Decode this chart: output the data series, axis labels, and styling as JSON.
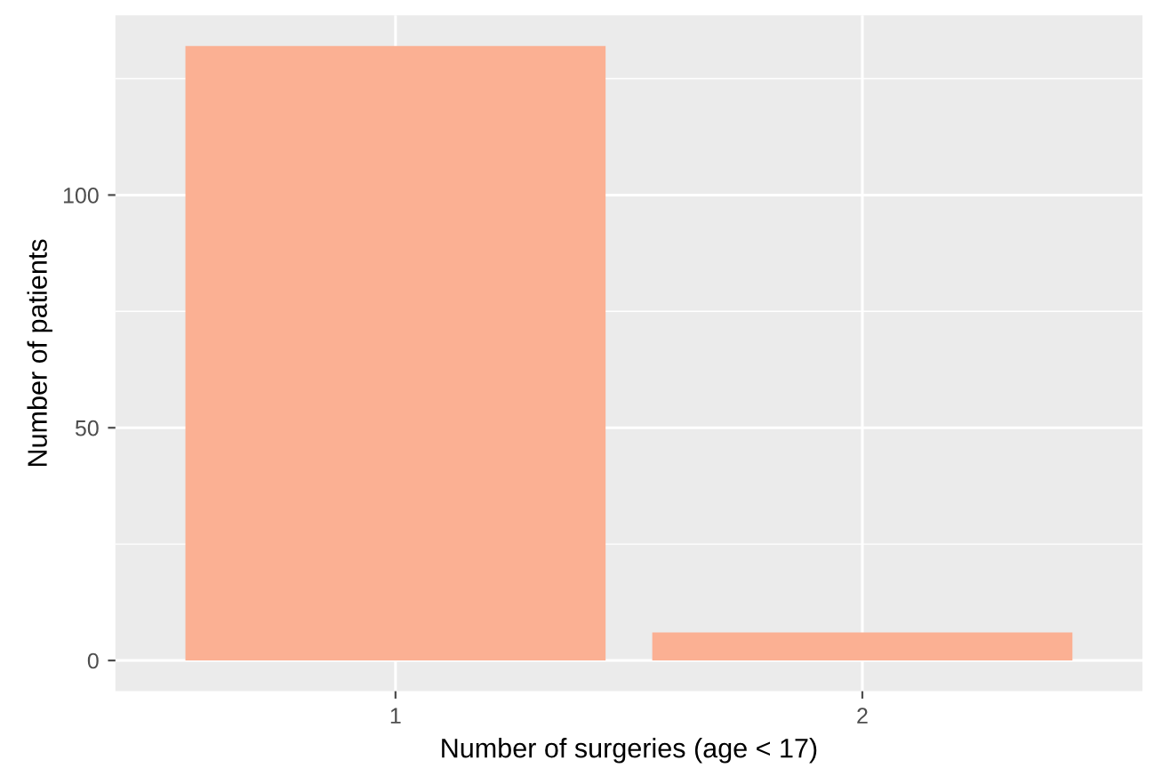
{
  "chart_data": {
    "type": "bar",
    "xlabel": "Number of surgeries (age < 17)",
    "ylabel": "Number of patients",
    "categories": [
      "1",
      "2"
    ],
    "values": [
      132,
      6
    ],
    "color": "#fbb093",
    "ylim": [
      -6.6,
      138.6
    ],
    "yticks": [
      0,
      50,
      100
    ],
    "grid": true
  }
}
